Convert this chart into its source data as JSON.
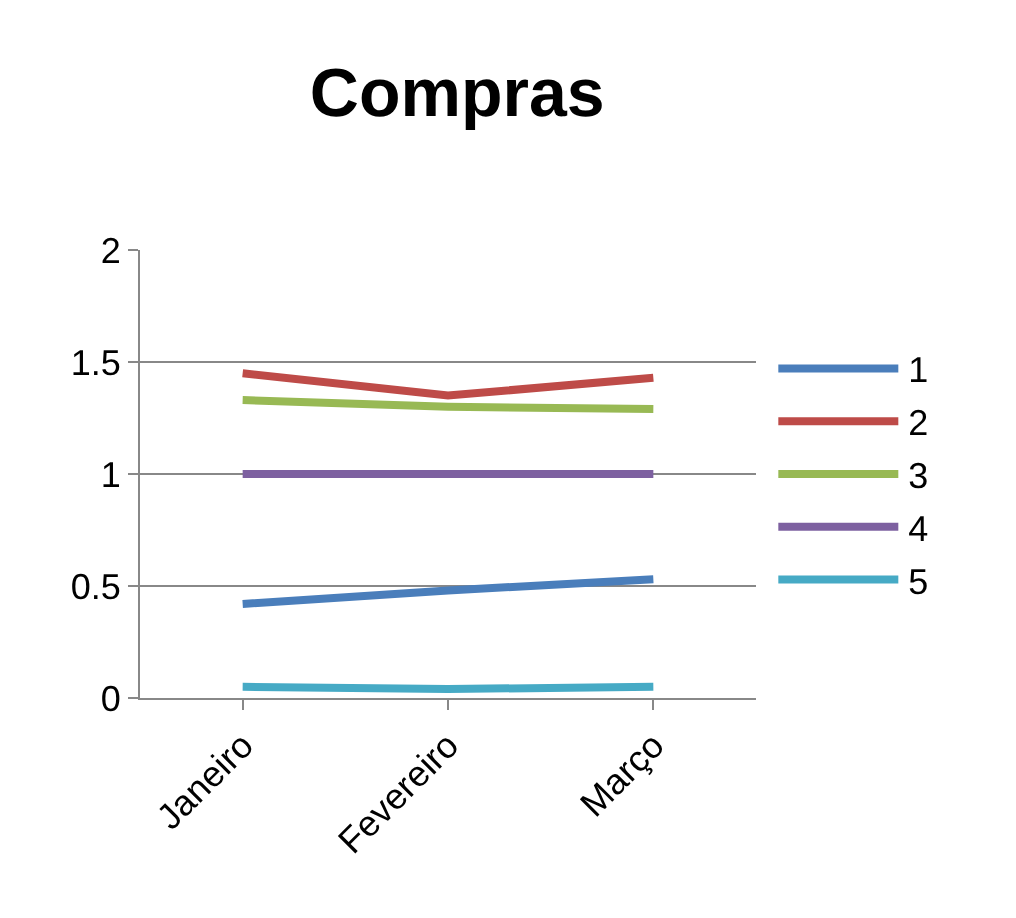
{
  "chart_data": {
    "type": "line",
    "title": "Compras",
    "categories": [
      "Janeiro",
      "Fevereiro",
      "Março"
    ],
    "series": [
      {
        "name": "1",
        "color": "#4a7ebb",
        "values": [
          0.42,
          0.48,
          0.53
        ]
      },
      {
        "name": "2",
        "color": "#be4b48",
        "values": [
          1.45,
          1.35,
          1.43
        ]
      },
      {
        "name": "3",
        "color": "#98b954",
        "values": [
          1.33,
          1.3,
          1.29
        ]
      },
      {
        "name": "4",
        "color": "#7d60a0",
        "values": [
          1,
          1,
          1
        ]
      },
      {
        "name": "5",
        "color": "#46aac5",
        "values": [
          0.05,
          0.04,
          0.05
        ]
      }
    ],
    "ylim": [
      0,
      2
    ],
    "yticks": [
      0,
      0.5,
      1,
      1.5,
      2
    ],
    "grid": "y",
    "legend": "right",
    "marker": "none",
    "line_style": "solid"
  }
}
